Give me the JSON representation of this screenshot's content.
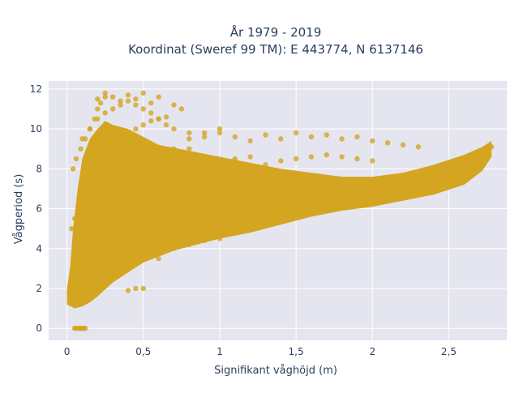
{
  "chart_data": {
    "type": "scatter",
    "title_line1": "År 1979 - 2019",
    "title_line2": "Koordinat (Sweref 99 TM): E 443774, N 6137146",
    "xlabel": "Signifikant våghöjd (m)",
    "ylabel": "Vågperiod (s)",
    "xlim": [
      -0.12,
      2.88
    ],
    "ylim": [
      -0.6,
      12.4
    ],
    "x_ticks": [
      0,
      0.5,
      1,
      1.5,
      2,
      2.5
    ],
    "x_tick_labels": [
      "0",
      "0,5",
      "1",
      "1,5",
      "2",
      "2,5"
    ],
    "y_ticks": [
      0,
      2,
      4,
      6,
      8,
      10,
      12
    ],
    "y_tick_labels": [
      "0",
      "2",
      "4",
      "6",
      "8",
      "10",
      "12"
    ],
    "grid": true,
    "legend": "none",
    "colors": {
      "marker": "#d4a520",
      "plot_bg": "#e5e5f0",
      "grid": "#ffffff",
      "text": "#2a3f5f"
    },
    "series": [
      {
        "values_description": "dense cloud",
        "x": [
          0.02,
          0.04,
          0.06,
          0.08,
          0.1,
          0.12,
          0.03,
          0.05,
          0.07,
          0.09,
          0.11,
          0.03,
          0.05,
          0.08,
          0.1,
          0.12,
          0.15,
          0.04,
          0.06,
          0.09,
          0.12,
          0.15,
          0.18,
          0.2,
          0.22,
          0.25,
          0.05,
          0.08,
          0.1,
          0.15,
          0.2,
          0.25,
          0.3,
          0.35,
          0.4,
          0.45,
          0.5,
          0.1,
          0.15,
          0.2,
          0.25,
          0.3,
          0.35,
          0.4,
          0.5,
          0.6,
          0.7,
          0.8,
          0.2,
          0.3,
          0.4,
          0.5,
          0.6,
          0.7,
          0.8,
          0.9,
          1.0,
          1.1,
          1.2,
          0.3,
          0.4,
          0.5,
          0.6,
          0.7,
          0.8,
          0.9,
          1.0,
          1.1,
          1.2,
          1.3,
          1.4,
          1.5,
          0.5,
          0.6,
          0.7,
          0.8,
          0.9,
          1.0,
          1.1,
          1.2,
          1.3,
          1.4,
          1.5,
          1.6,
          1.7,
          1.8,
          1.9,
          2.0,
          1.0,
          1.2,
          1.4,
          1.6,
          1.8,
          2.0,
          2.1,
          2.2,
          2.3,
          2.4,
          2.5,
          2.6,
          2.7,
          2.75,
          2.78,
          1.6,
          1.8,
          2.0,
          2.2,
          2.4,
          2.6,
          2.7,
          2.75,
          0.1,
          0.15,
          0.2,
          0.25,
          0.3,
          0.35,
          0.4,
          0.45,
          0.5,
          0.55,
          0.6,
          0.65,
          0.7,
          0.8,
          0.9,
          1.0,
          0.2,
          0.25,
          0.3,
          0.35,
          0.4,
          0.45,
          0.5,
          0.55,
          0.6,
          0.7,
          0.75,
          0.8,
          0.9,
          1.0,
          1.1,
          1.2,
          1.3,
          1.4,
          1.5,
          1.6,
          1.7,
          1.8,
          1.9,
          2.0,
          2.1,
          2.2,
          2.3,
          0.15,
          0.2,
          0.25,
          0.3,
          0.35,
          0.4,
          0.45,
          0.5,
          0.55,
          0.6,
          0.65,
          0.05,
          0.06,
          0.07,
          0.08,
          0.09,
          0.1,
          0.11,
          0.12,
          0.4,
          0.45,
          0.5,
          0.6,
          0.7,
          0.8,
          0.9,
          1.0,
          1.2,
          1.4,
          1.6,
          1.8,
          2.0,
          2.2,
          2.4,
          2.6
        ],
        "y": [
          1.3,
          1.6,
          1.8,
          2.0,
          2.2,
          2.4,
          2.8,
          3.2,
          3.6,
          4.0,
          4.4,
          5.0,
          5.5,
          6.0,
          6.5,
          7.0,
          7.5,
          8.0,
          8.5,
          9.0,
          9.5,
          10.0,
          10.5,
          11.0,
          11.3,
          11.6,
          3.0,
          3.4,
          2.5,
          2.2,
          2.4,
          2.6,
          2.8,
          3.0,
          3.2,
          3.4,
          3.6,
          4.5,
          5.0,
          5.5,
          6.0,
          6.5,
          7.0,
          7.5,
          8.0,
          8.5,
          9.0,
          9.0,
          4.0,
          4.5,
          5.0,
          5.5,
          6.0,
          6.5,
          7.0,
          7.5,
          8.0,
          8.5,
          8.6,
          3.5,
          3.8,
          4.0,
          4.2,
          4.5,
          4.7,
          4.9,
          5.1,
          5.3,
          5.5,
          5.7,
          5.9,
          6.1,
          6.0,
          6.3,
          6.6,
          6.9,
          7.2,
          7.5,
          7.8,
          8.0,
          8.2,
          8.4,
          8.5,
          8.6,
          8.7,
          8.6,
          8.5,
          8.4,
          4.5,
          5.0,
          5.4,
          5.8,
          6.1,
          6.3,
          6.5,
          6.7,
          6.9,
          7.1,
          7.4,
          7.8,
          8.3,
          8.7,
          9.1,
          6.5,
          6.8,
          7.0,
          7.3,
          7.6,
          8.0,
          8.4,
          8.8,
          9.5,
          10.0,
          10.5,
          10.8,
          11.0,
          11.2,
          11.4,
          11.2,
          11.0,
          10.8,
          10.5,
          10.2,
          10.0,
          9.8,
          9.6,
          9.8,
          11.5,
          11.8,
          11.6,
          11.4,
          11.7,
          11.5,
          11.8,
          11.3,
          11.6,
          11.2,
          11.0,
          9.5,
          9.8,
          10.0,
          9.6,
          9.4,
          9.7,
          9.5,
          9.8,
          9.6,
          9.7,
          9.5,
          9.6,
          9.4,
          9.3,
          9.2,
          9.1,
          7.0,
          7.5,
          8.0,
          8.5,
          9.0,
          9.5,
          10.0,
          10.2,
          10.4,
          10.5,
          10.6,
          0.0,
          0.0,
          0.0,
          0.0,
          0.0,
          0.0,
          0.0,
          0.0,
          1.9,
          2.0,
          2.0,
          3.5,
          4.0,
          4.2,
          4.4,
          4.6,
          5.0,
          5.4,
          5.8,
          6.2,
          6.6,
          7.0,
          7.4,
          7.9
        ]
      }
    ]
  }
}
